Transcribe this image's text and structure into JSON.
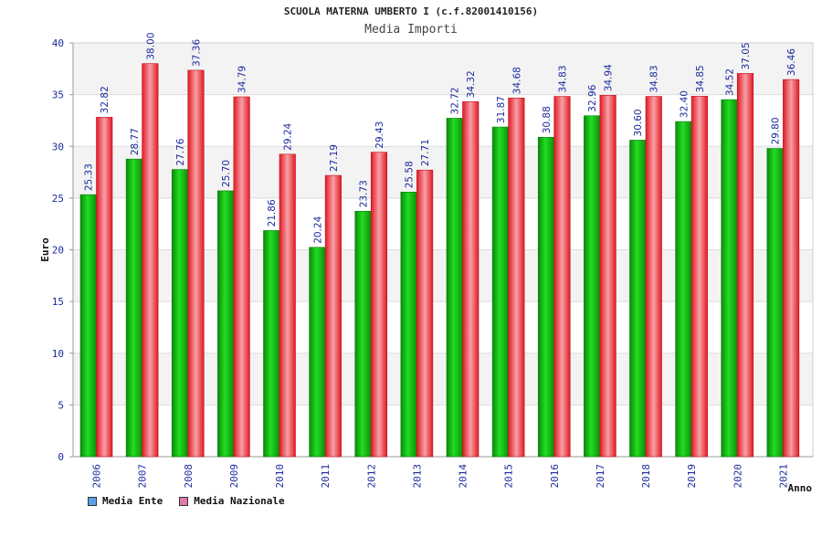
{
  "title": "SCUOLA MATERNA UMBERTO I (c.f.82001410156)",
  "subtitle": "Media Importi",
  "colors": {
    "series_ente": "#14b814",
    "series_nazionale": "#e8202e",
    "legend_ente": "#5aa0e6",
    "legend_nazionale": "#e07aa8",
    "axis_labels": "#1b2a9c"
  },
  "legend": {
    "items": [
      {
        "label": "Media Ente",
        "color": "#5aa0e6"
      },
      {
        "label": "Media Nazionale",
        "color": "#e07aa8"
      }
    ]
  },
  "chart_data": {
    "type": "bar",
    "title": "SCUOLA MATERNA UMBERTO I (c.f.82001410156)",
    "subtitle": "Media Importi",
    "xlabel": "Anno",
    "ylabel": "Euro",
    "ylim": [
      0,
      40
    ],
    "yticks": [
      0,
      5,
      10,
      15,
      20,
      25,
      30,
      35,
      40
    ],
    "grid": true,
    "legend_position": "bottom-left",
    "categories": [
      "2006",
      "2007",
      "2008",
      "2009",
      "2010",
      "2011",
      "2012",
      "2013",
      "2014",
      "2015",
      "2016",
      "2017",
      "2018",
      "2019",
      "2020",
      "2021"
    ],
    "series": [
      {
        "name": "Media Ente",
        "values": [
          25.33,
          28.77,
          27.76,
          25.7,
          21.86,
          20.24,
          23.73,
          25.58,
          32.72,
          31.87,
          30.88,
          32.96,
          30.6,
          32.4,
          34.52,
          29.8
        ]
      },
      {
        "name": "Media Nazionale",
        "values": [
          32.82,
          38.0,
          37.36,
          34.79,
          29.24,
          27.19,
          29.43,
          27.71,
          34.32,
          34.68,
          34.83,
          34.94,
          34.83,
          34.85,
          37.05,
          36.46
        ]
      }
    ]
  }
}
